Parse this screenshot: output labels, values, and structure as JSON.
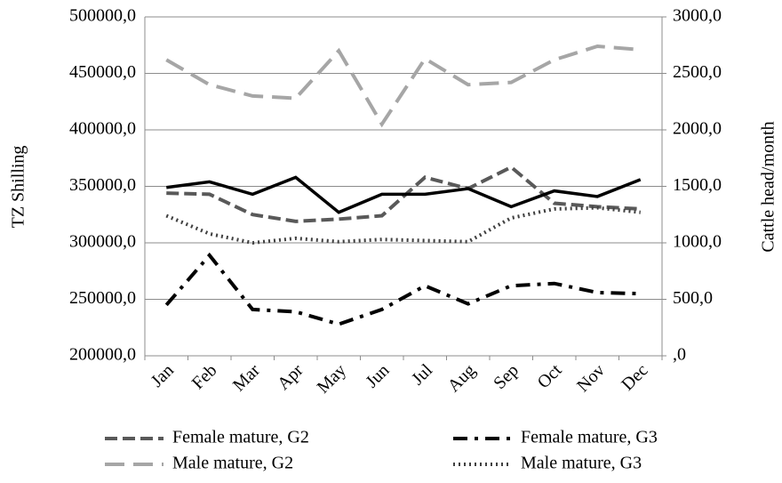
{
  "chart_data": {
    "type": "line",
    "y_label": "TZ Shilling",
    "y2_label": "Cattle head/month",
    "categories": [
      "Jan",
      "Feb",
      "Mar",
      "Apr",
      "May",
      "Jun",
      "Jul",
      "Aug",
      "Sep",
      "Oct",
      "Nov",
      "Dec"
    ],
    "series": [
      {
        "name": "Female mature, G2",
        "color": "#595959",
        "dash": "14,6",
        "values": [
          344000,
          343000,
          325000,
          319000,
          321000,
          324000,
          358000,
          348000,
          367000,
          335000,
          332000,
          330000
        ]
      },
      {
        "name": "Female mature, G3",
        "color": "#000000",
        "dash": "16,8,4,8",
        "values": [
          245000,
          289000,
          241000,
          239000,
          228000,
          241000,
          262000,
          246000,
          262000,
          264000,
          256000,
          255000
        ]
      },
      {
        "name": "Male mature, G2",
        "color": "#a6a6a6",
        "dash": "22,10",
        "values": [
          462000,
          440000,
          430000,
          428000,
          470000,
          405000,
          463000,
          440000,
          442000,
          462000,
          474000,
          471000
        ]
      },
      {
        "name": "Male mature, G3",
        "color": "#404040",
        "dash": "2,4",
        "values": [
          324000,
          308000,
          300000,
          304000,
          301000,
          303000,
          302000,
          301000,
          322000,
          330000,
          331000,
          327000
        ]
      },
      {
        "color": "#000000",
        "axis": "y2",
        "values": [
          1490,
          1540,
          1430,
          1580,
          1270,
          1430,
          1430,
          1480,
          1320,
          1460,
          1410,
          1560
        ]
      }
    ],
    "ylim": [
      200000,
      500000
    ],
    "yticks": [
      {
        "value": 200000,
        "label": "200000,0"
      },
      {
        "value": 250000,
        "label": "250000,0"
      },
      {
        "value": 300000,
        "label": "300000,0"
      },
      {
        "value": 350000,
        "label": "350000,0"
      },
      {
        "value": 400000,
        "label": "400000,0"
      },
      {
        "value": 450000,
        "label": "450000,0"
      },
      {
        "value": 500000,
        "label": "500000,0"
      }
    ],
    "y2lim": [
      0,
      3000
    ],
    "y2ticks": [
      {
        "value": 0,
        "label": ",0"
      },
      {
        "value": 500,
        "label": "500,0"
      },
      {
        "value": 1000,
        "label": "1000,0"
      },
      {
        "value": 1500,
        "label": "1500,0"
      },
      {
        "value": 2000,
        "label": "2000,0"
      },
      {
        "value": 2500,
        "label": "2500,0"
      },
      {
        "value": 3000,
        "label": "3000,0"
      }
    ],
    "grid": true
  }
}
